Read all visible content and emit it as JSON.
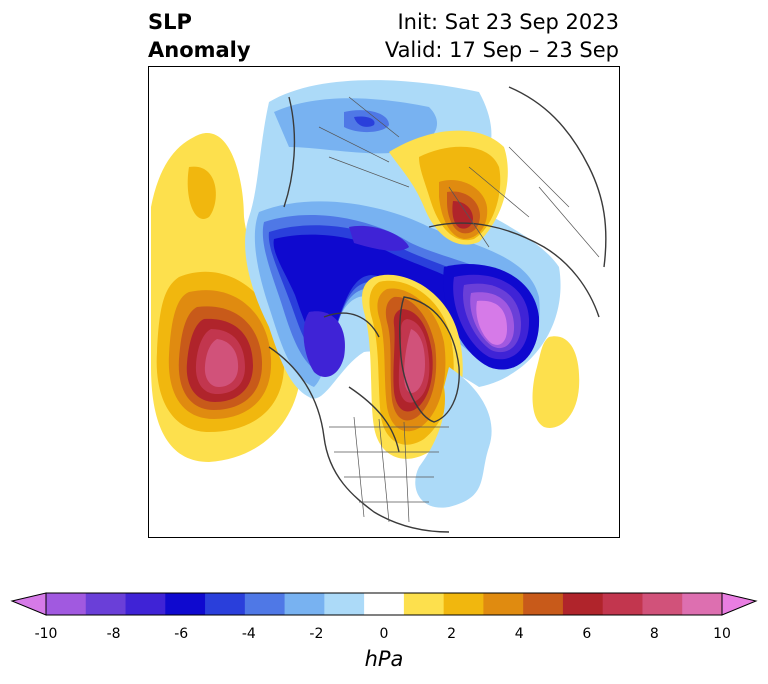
{
  "title": {
    "left_line1": "SLP",
    "left_line2": "Anomaly",
    "right_line1": "Init: Sat 23 Sep 2023",
    "right_line2": "Valid: 17 Sep – 23 Sep"
  },
  "colorbar": {
    "unit": "hPa",
    "ticks": [
      "-10",
      "-8",
      "-6",
      "-4",
      "-2",
      "0",
      "2",
      "4",
      "6",
      "8",
      "10"
    ],
    "extend": "both",
    "colors": [
      "#d67ae8",
      "#a159e0",
      "#6a3fd8",
      "#3f23d6",
      "#0f09cf",
      "#2a3fdb",
      "#4f78e6",
      "#78b2f1",
      "#acdaf8",
      "#ffffff",
      "#fde04d",
      "#f1b70e",
      "#e08b10",
      "#c85a1a",
      "#b0242b",
      "#c2364e",
      "#d1527a",
      "#dd6fb0",
      "#e97ee2"
    ]
  },
  "map": {
    "projection": "polar-stereographic",
    "region": "Northern Hemisphere",
    "features": [
      "coastlines",
      "country-borders",
      "us-state-borders"
    ]
  }
}
